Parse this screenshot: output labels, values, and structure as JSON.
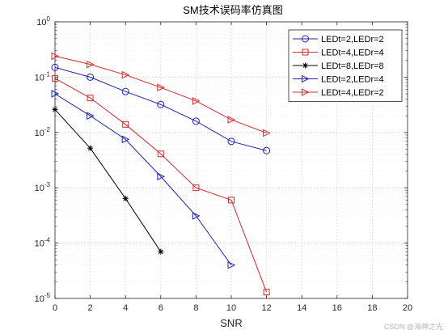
{
  "chart_data": {
    "type": "line",
    "title": "SM技术误码率仿真图",
    "xlabel": "SNR",
    "ylabel": "",
    "xlim": [
      0,
      20
    ],
    "ylim": [
      1e-05,
      1
    ],
    "yscale": "log",
    "grid": true,
    "minor_grid": true,
    "legend_position": "top-right",
    "x_ticks": [
      "0",
      "2",
      "4",
      "6",
      "8",
      "10",
      "12",
      "14",
      "16",
      "18",
      "20"
    ],
    "y_ticks": [
      {
        "base": "10",
        "exp": "0",
        "value": 1
      },
      {
        "base": "10",
        "exp": "-1",
        "value": 0.1
      },
      {
        "base": "10",
        "exp": "-2",
        "value": 0.01
      },
      {
        "base": "10",
        "exp": "-3",
        "value": 0.001
      },
      {
        "base": "10",
        "exp": "-4",
        "value": 0.0001
      },
      {
        "base": "10",
        "exp": "-5",
        "value": 1e-05
      }
    ],
    "series": [
      {
        "name": "LEDt=2,LEDr=2",
        "color": "#1f22b4",
        "marker": "circle",
        "x": [
          0,
          2,
          4,
          6,
          8,
          10,
          12
        ],
        "y": [
          0.15,
          0.1,
          0.055,
          0.032,
          0.016,
          0.0069,
          0.0047
        ]
      },
      {
        "name": "LEDt=4,LEDr=4",
        "color": "#d42a2a",
        "marker": "square",
        "x": [
          0,
          2,
          4,
          6,
          8,
          10,
          12
        ],
        "y": [
          0.095,
          0.042,
          0.014,
          0.0041,
          0.001,
          0.0006,
          1.3e-05
        ]
      },
      {
        "name": "LEDt=8,LEDr=8",
        "color": "#000000",
        "marker": "star",
        "x": [
          0,
          2,
          4,
          6
        ],
        "y": [
          0.026,
          0.0052,
          0.00064,
          7e-05
        ]
      },
      {
        "name": "LEDt=2,LEDr=4",
        "color": "#1f22b4",
        "marker": "triangle-right",
        "x": [
          0,
          2,
          4,
          6,
          8,
          10
        ],
        "y": [
          0.05,
          0.02,
          0.0075,
          0.0016,
          0.00031,
          4e-05
        ]
      },
      {
        "name": "LEDt=4,LEDr=2",
        "color": "#d42a2a",
        "marker": "triangle-right",
        "x": [
          0,
          2,
          4,
          6,
          8,
          10,
          12
        ],
        "y": [
          0.24,
          0.17,
          0.11,
          0.065,
          0.037,
          0.017,
          0.0098
        ]
      }
    ]
  },
  "watermark": "CSDN @海神之光"
}
